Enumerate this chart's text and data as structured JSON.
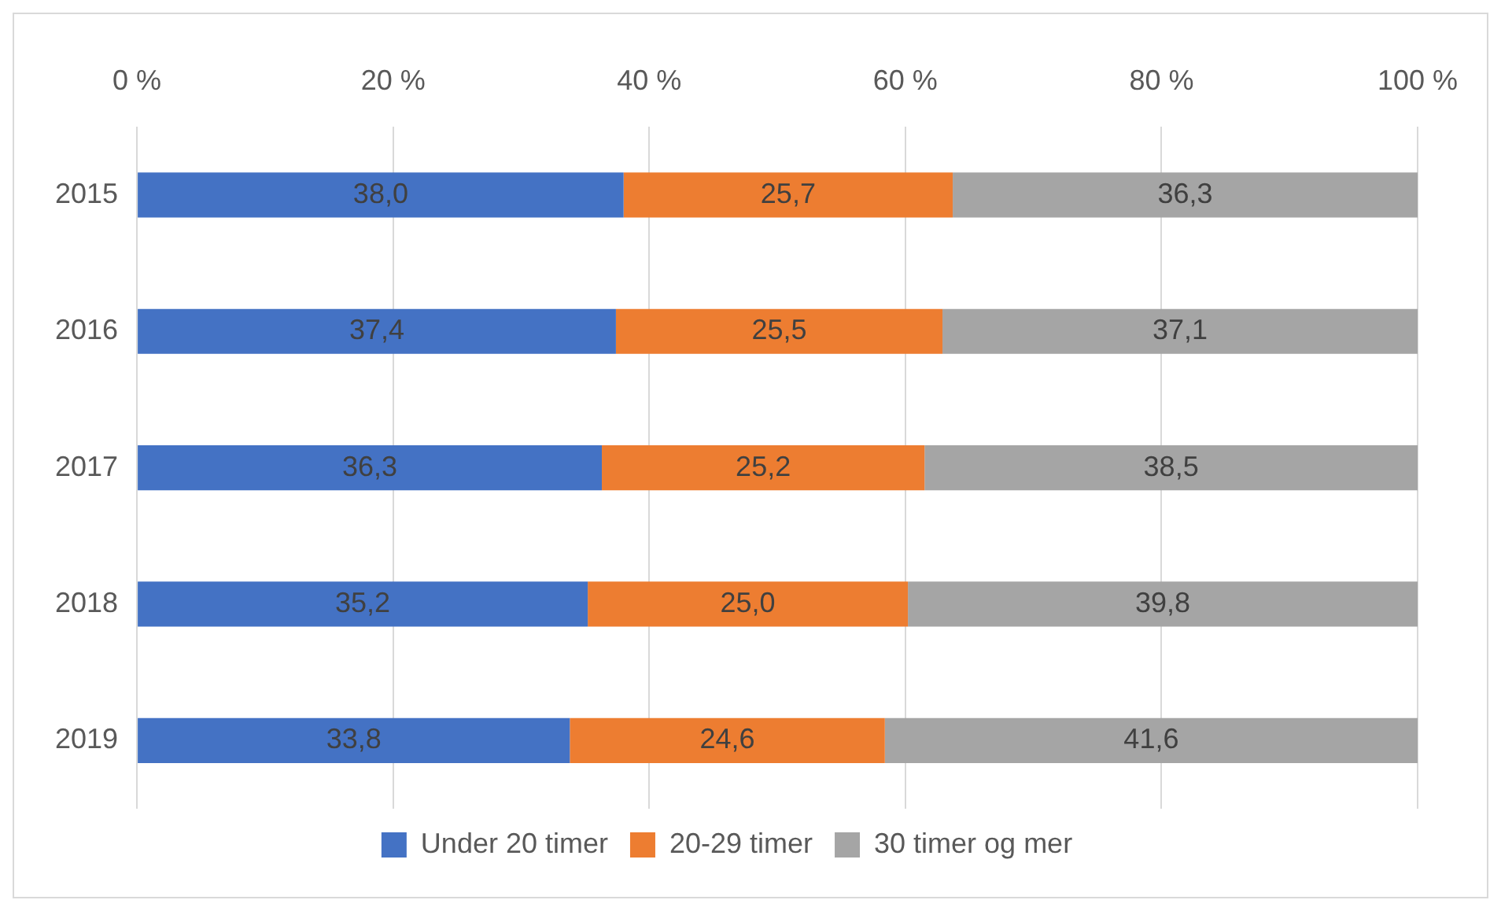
{
  "chart_data": {
    "type": "bar",
    "orientation": "horizontal",
    "stacked": true,
    "categories": [
      "2015",
      "2016",
      "2017",
      "2018",
      "2019"
    ],
    "series": [
      {
        "name": "Under 20 timer",
        "color": "#4472c4",
        "values": [
          38.0,
          37.4,
          36.3,
          35.2,
          33.8
        ],
        "value_labels": [
          "38,0",
          "37,4",
          "36,3",
          "35,2",
          "33,8"
        ]
      },
      {
        "name": "20-29 timer",
        "color": "#ed7d31",
        "values": [
          25.7,
          25.5,
          25.2,
          25.0,
          24.6
        ],
        "value_labels": [
          "25,7",
          "25,5",
          "25,2",
          "25,0",
          "24,6"
        ]
      },
      {
        "name": "30 timer og mer",
        "color": "#a5a5a5",
        "values": [
          36.3,
          37.1,
          38.5,
          39.8,
          41.6
        ],
        "value_labels": [
          "36,3",
          "37,1",
          "38,5",
          "39,8",
          "41,6"
        ]
      }
    ],
    "xlim": [
      0,
      100
    ],
    "xticks": [
      {
        "value": 0,
        "label": "0 %"
      },
      {
        "value": 20,
        "label": "20 %"
      },
      {
        "value": 40,
        "label": "40 %"
      },
      {
        "value": 60,
        "label": "60 %"
      },
      {
        "value": 80,
        "label": "80 %"
      },
      {
        "value": 100,
        "label": "100 %"
      }
    ],
    "grid": "x",
    "legend": "bottom"
  }
}
